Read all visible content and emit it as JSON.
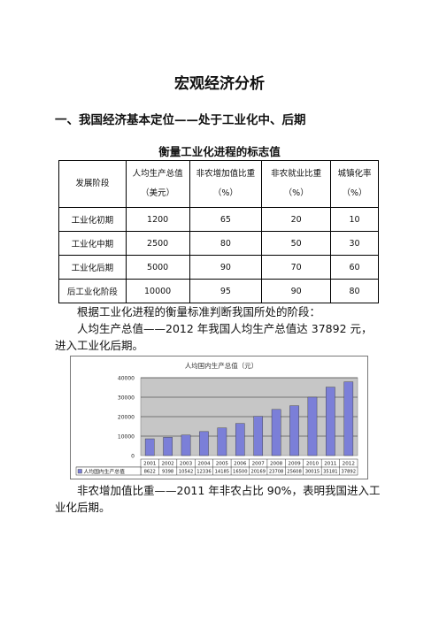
{
  "title": "宏观经济分析",
  "section": "一、我国经济基本定位——处于工业化中、后期",
  "table_caption": "衡量工业化进程的标志值",
  "table": {
    "stage_header": "发展阶段",
    "columns": [
      {
        "name": "人均生产总值",
        "unit": "（美元）"
      },
      {
        "name": "非农增加值比重",
        "unit": "（%）"
      },
      {
        "name": "非农就业比重",
        "unit": "（%）"
      },
      {
        "name": "城镇化率",
        "unit": "（%）"
      }
    ],
    "rows": [
      {
        "stage": "工业化初期",
        "values": [
          "1200",
          "65",
          "20",
          "10"
        ]
      },
      {
        "stage": "工业化中期",
        "values": [
          "2500",
          "80",
          "50",
          "30"
        ]
      },
      {
        "stage": "工业化后期",
        "values": [
          "5000",
          "90",
          "70",
          "60"
        ]
      },
      {
        "stage": "后工业化阶段",
        "values": [
          "10000",
          "95",
          "90",
          "80"
        ]
      }
    ]
  },
  "para1": "根据工业化进程的衡量标准判断我国所处的阶段：",
  "para2": "人均生产总值——2012 年我国人均生产总值达 37892 元，进入工业化后期。",
  "para3": "非农增加值比重——2011 年非农占比 90%，表明我国进入工业化后期。",
  "colors": {
    "bar": "#7b7fd8",
    "plot_bg": "#c6c6c6"
  },
  "chart_data": {
    "type": "bar",
    "title": "人均国内生产总值（元）",
    "categories": [
      "2001",
      "2002",
      "2003",
      "2004",
      "2005",
      "2006",
      "2007",
      "2008",
      "2009",
      "2010",
      "2011",
      "2012"
    ],
    "series": [
      {
        "name": "人均国内生产总值",
        "values": [
          8622,
          9398,
          10542,
          12336,
          14185,
          16500,
          20169,
          23708,
          25608,
          30015,
          35181,
          37892
        ]
      }
    ],
    "value_labels": [
      "8622",
      "9398",
      "10542",
      "12336",
      "14185",
      "16500",
      "20169",
      "23708",
      "25608",
      "30015",
      "35181",
      "37892"
    ],
    "yticks": [
      "0",
      "10000",
      "20000",
      "30000",
      "40000"
    ],
    "ylim": [
      0,
      40000
    ],
    "grid": true,
    "legend": "table-row"
  }
}
